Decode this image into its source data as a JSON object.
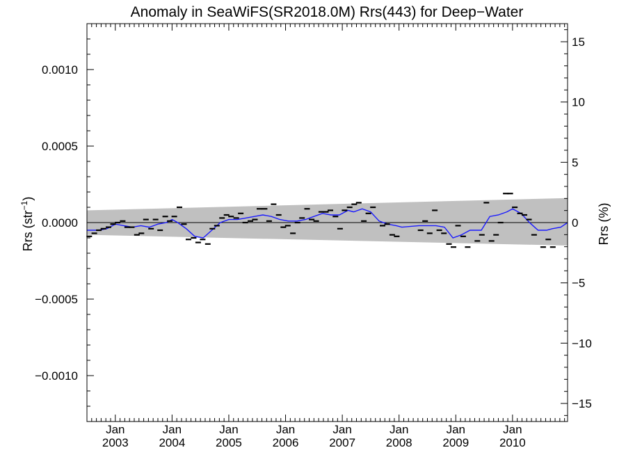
{
  "chart_data": {
    "type": "scatter",
    "title": "Anomaly in SeaWiFS(SR2018.0M) Rrs(443) for Deep−Water",
    "ylabel_left": {
      "base": "Rrs (str",
      "sup": "−1",
      "close": ")"
    },
    "ylabel_right": "Rrs (%)",
    "xlim": [
      2002.5,
      2010.97
    ],
    "ylim": [
      -0.0013,
      0.0013
    ],
    "ylim_right": [
      -16.5,
      16.5
    ],
    "x_ticks": [
      {
        "x": 2003.0,
        "month": "Jan",
        "year": "2003"
      },
      {
        "x": 2004.0,
        "month": "Jan",
        "year": "2004"
      },
      {
        "x": 2005.0,
        "month": "Jan",
        "year": "2005"
      },
      {
        "x": 2006.0,
        "month": "Jan",
        "year": "2006"
      },
      {
        "x": 2007.0,
        "month": "Jan",
        "year": "2007"
      },
      {
        "x": 2008.0,
        "month": "Jan",
        "year": "2008"
      },
      {
        "x": 2009.0,
        "month": "Jan",
        "year": "2009"
      },
      {
        "x": 2010.0,
        "month": "Jan",
        "year": "2010"
      }
    ],
    "y_ticks_left": [
      {
        "v": 0.001,
        "label": "0.0010"
      },
      {
        "v": 0.0005,
        "label": "0.0005"
      },
      {
        "v": 0.0,
        "label": "0.0000"
      },
      {
        "v": -0.0005,
        "label": "−0.0005"
      },
      {
        "v": -0.001,
        "label": "−0.0010"
      }
    ],
    "y_ticks_right": [
      {
        "v": 15,
        "label": "15"
      },
      {
        "v": 10,
        "label": "10"
      },
      {
        "v": 5,
        "label": "5"
      },
      {
        "v": 0,
        "label": "0"
      },
      {
        "v": -5,
        "label": "−5"
      },
      {
        "v": -10,
        "label": "−10"
      },
      {
        "v": -15,
        "label": "−15"
      }
    ],
    "uncertainty_band": {
      "x": [
        2002.5,
        2010.97
      ],
      "upper": [
        8e-05,
        0.00016
      ],
      "lower": [
        -8e-05,
        -0.00015
      ]
    },
    "zero_line": 0,
    "monthly_anomalies": [
      [
        2002.54,
        -9e-05
      ],
      [
        2002.63,
        -7e-05
      ],
      [
        2002.71,
        -5e-05
      ],
      [
        2002.79,
        -4e-05
      ],
      [
        2002.88,
        -3e-05
      ],
      [
        2002.96,
        -1e-05
      ],
      [
        2003.04,
        0.0
      ],
      [
        2003.13,
        1e-05
      ],
      [
        2003.21,
        -3e-05
      ],
      [
        2003.29,
        -3e-05
      ],
      [
        2003.38,
        -8e-05
      ],
      [
        2003.46,
        -7e-05
      ],
      [
        2003.54,
        2e-05
      ],
      [
        2003.63,
        -4e-05
      ],
      [
        2003.71,
        2e-05
      ],
      [
        2003.79,
        -5e-05
      ],
      [
        2003.88,
        4e-05
      ],
      [
        2003.96,
        1e-05
      ],
      [
        2004.04,
        4e-05
      ],
      [
        2004.13,
        0.0001
      ],
      [
        2004.21,
        -1e-05
      ],
      [
        2004.29,
        -0.00011
      ],
      [
        2004.38,
        -0.0001
      ],
      [
        2004.46,
        -0.00013
      ],
      [
        2004.54,
        -0.00011
      ],
      [
        2004.63,
        -0.00014
      ],
      [
        2004.71,
        -4e-05
      ],
      [
        2004.79,
        -2e-05
      ],
      [
        2004.88,
        3e-05
      ],
      [
        2004.96,
        5e-05
      ],
      [
        2005.04,
        4e-05
      ],
      [
        2005.13,
        3e-05
      ],
      [
        2005.21,
        6e-05
      ],
      [
        2005.29,
        0.0
      ],
      [
        2005.38,
        1e-05
      ],
      [
        2005.46,
        2e-05
      ],
      [
        2005.54,
        9e-05
      ],
      [
        2005.63,
        9e-05
      ],
      [
        2005.71,
        1e-05
      ],
      [
        2005.79,
        0.00012
      ],
      [
        2005.88,
        5e-05
      ],
      [
        2005.96,
        -3e-05
      ],
      [
        2006.04,
        -2e-05
      ],
      [
        2006.13,
        -7e-05
      ],
      [
        2006.21,
        0.0
      ],
      [
        2006.29,
        3e-05
      ],
      [
        2006.38,
        9e-05
      ],
      [
        2006.46,
        2e-05
      ],
      [
        2006.54,
        1e-05
      ],
      [
        2006.63,
        7e-05
      ],
      [
        2006.71,
        7e-05
      ],
      [
        2006.79,
        8e-05
      ],
      [
        2006.88,
        4e-05
      ],
      [
        2006.96,
        -4e-05
      ],
      [
        2007.04,
        8e-05
      ],
      [
        2007.13,
        0.0001
      ],
      [
        2007.21,
        0.00012
      ],
      [
        2007.29,
        0.00013
      ],
      [
        2007.38,
        1e-05
      ],
      [
        2007.46,
        6e-05
      ],
      [
        2007.54,
        0.0001
      ],
      [
        2007.71,
        -2e-05
      ],
      [
        2007.79,
        -1e-05
      ],
      [
        2007.88,
        -8e-05
      ],
      [
        2007.96,
        -9e-05
      ],
      [
        2008.38,
        -5e-05
      ],
      [
        2008.46,
        1e-05
      ],
      [
        2008.54,
        -7e-05
      ],
      [
        2008.63,
        8e-05
      ],
      [
        2008.71,
        -5e-05
      ],
      [
        2008.79,
        -7e-05
      ],
      [
        2008.88,
        -0.00014
      ],
      [
        2008.96,
        -0.00016
      ],
      [
        2009.04,
        -2e-05
      ],
      [
        2009.13,
        -9e-05
      ],
      [
        2009.21,
        -0.00016
      ],
      [
        2009.38,
        -0.00012
      ],
      [
        2009.46,
        -8e-05
      ],
      [
        2009.54,
        0.00013
      ],
      [
        2009.63,
        -0.00012
      ],
      [
        2009.71,
        -8e-05
      ],
      [
        2009.79,
        0.0
      ],
      [
        2009.88,
        0.00019
      ],
      [
        2009.96,
        0.00019
      ],
      [
        2010.04,
        0.0001
      ],
      [
        2010.13,
        6e-05
      ],
      [
        2010.21,
        5e-05
      ],
      [
        2010.29,
        2e-05
      ],
      [
        2010.38,
        -8e-05
      ],
      [
        2010.54,
        -0.00016
      ],
      [
        2010.63,
        -0.00011
      ],
      [
        2010.71,
        -0.00016
      ]
    ],
    "running_mean": {
      "color": "#1a1aff",
      "points": [
        [
          2002.5,
          -5e-05
        ],
        [
          2002.7,
          -5e-05
        ],
        [
          2002.85,
          -4e-05
        ],
        [
          2003.0,
          -1e-05
        ],
        [
          2003.15,
          -2e-05
        ],
        [
          2003.3,
          -3e-05
        ],
        [
          2003.45,
          -2e-05
        ],
        [
          2003.6,
          -3e-05
        ],
        [
          2003.75,
          -1e-05
        ],
        [
          2003.9,
          0.0
        ],
        [
          2004.0,
          2e-05
        ],
        [
          2004.1,
          0.0
        ],
        [
          2004.25,
          -4e-05
        ],
        [
          2004.4,
          -9e-05
        ],
        [
          2004.55,
          -0.0001
        ],
        [
          2004.7,
          -5e-05
        ],
        [
          2004.85,
          0.0
        ],
        [
          2005.0,
          2e-05
        ],
        [
          2005.15,
          2e-05
        ],
        [
          2005.3,
          3e-05
        ],
        [
          2005.45,
          4e-05
        ],
        [
          2005.6,
          5e-05
        ],
        [
          2005.75,
          4e-05
        ],
        [
          2005.9,
          2e-05
        ],
        [
          2006.05,
          1e-05
        ],
        [
          2006.2,
          1e-05
        ],
        [
          2006.35,
          2e-05
        ],
        [
          2006.5,
          4e-05
        ],
        [
          2006.65,
          6e-05
        ],
        [
          2006.8,
          5e-05
        ],
        [
          2006.95,
          5e-05
        ],
        [
          2007.1,
          8e-05
        ],
        [
          2007.2,
          7e-05
        ],
        [
          2007.35,
          9e-05
        ],
        [
          2007.5,
          7e-05
        ],
        [
          2007.65,
          1e-05
        ],
        [
          2007.8,
          -1e-05
        ],
        [
          2007.95,
          -2e-05
        ],
        [
          2008.05,
          -3e-05
        ],
        [
          2008.35,
          -2e-05
        ],
        [
          2008.65,
          -2e-05
        ],
        [
          2008.8,
          -3e-05
        ],
        [
          2008.95,
          -0.0001
        ],
        [
          2009.1,
          -8e-05
        ],
        [
          2009.25,
          -5e-05
        ],
        [
          2009.45,
          -5e-05
        ],
        [
          2009.6,
          4e-05
        ],
        [
          2009.75,
          5e-05
        ],
        [
          2009.9,
          7e-05
        ],
        [
          2010.0,
          9e-05
        ],
        [
          2010.15,
          6e-05
        ],
        [
          2010.3,
          0.0
        ],
        [
          2010.45,
          -5e-05
        ],
        [
          2010.6,
          -5e-05
        ],
        [
          2010.7,
          -4e-05
        ],
        [
          2010.85,
          -3e-05
        ],
        [
          2010.97,
          0.0
        ]
      ]
    },
    "band_color": "#c0c0c0",
    "marker_color": "#000000"
  }
}
